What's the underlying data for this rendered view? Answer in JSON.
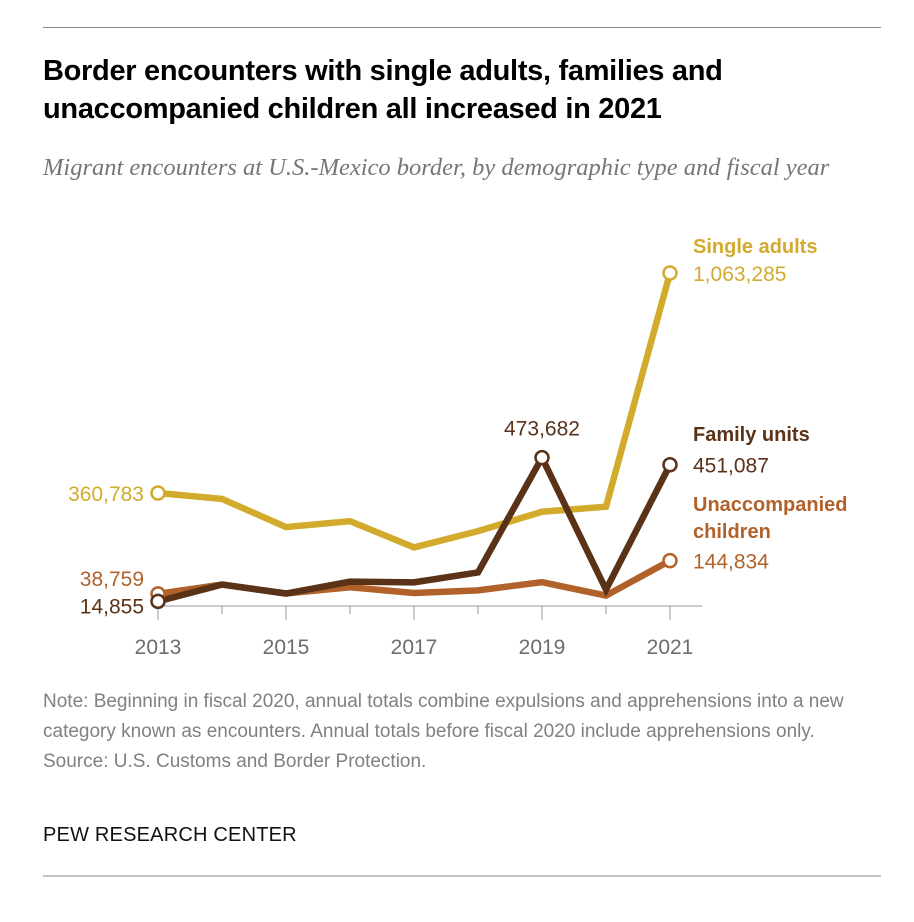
{
  "title": "Border encounters with single adults, families and unaccompanied children all increased in 2021",
  "subtitle": "Migrant encounters at U.S.-Mexico border, by demographic type and fiscal year",
  "note": "Note: Beginning in fiscal 2020, annual totals combine expulsions and apprehensions into a new category known as encounters. Annual totals before fiscal 2020 include apprehensions only.",
  "source": "Source: U.S. Customs and Border Protection.",
  "brand": "PEW RESEARCH CENTER",
  "chart_data": {
    "type": "line",
    "title": "Border encounters with single adults, families and unaccompanied children all increased in 2021",
    "subtitle": "Migrant encounters at U.S.-Mexico border, by demographic type and fiscal year",
    "xlabel": "",
    "ylabel": "",
    "x": [
      2013,
      2014,
      2015,
      2016,
      2017,
      2018,
      2019,
      2020,
      2021
    ],
    "x_tick_labels": [
      "2013",
      "2015",
      "2017",
      "2019",
      "2021"
    ],
    "ylim": [
      0,
      1100000
    ],
    "grid": false,
    "legend": "direct-labels-right",
    "series": [
      {
        "name": "Single adults",
        "color": "#D2AA2C",
        "values": [
          360783,
          342000,
          252000,
          271000,
          187000,
          239000,
          301000,
          317000,
          1063285
        ],
        "labels": [
          {
            "index": 0,
            "text": "360,783"
          },
          {
            "index": 8,
            "text": "1,063,285"
          }
        ]
      },
      {
        "name": "Family units",
        "color": "#5A3218",
        "values": [
          14855,
          68445,
          39838,
          77674,
          75622,
          107212,
          473682,
          52230,
          451087
        ],
        "labels": [
          {
            "index": 0,
            "text": "14,855"
          },
          {
            "index": 6,
            "text": "473,682"
          },
          {
            "index": 8,
            "text": "451,087"
          }
        ]
      },
      {
        "name": "Unaccompanied children",
        "color": "#B0622A",
        "values": [
          38759,
          68541,
          39970,
          59692,
          41435,
          50036,
          76020,
          33239,
          144834
        ],
        "labels": [
          {
            "index": 0,
            "text": "38,759"
          },
          {
            "index": 8,
            "text": "144,834"
          }
        ]
      }
    ]
  }
}
